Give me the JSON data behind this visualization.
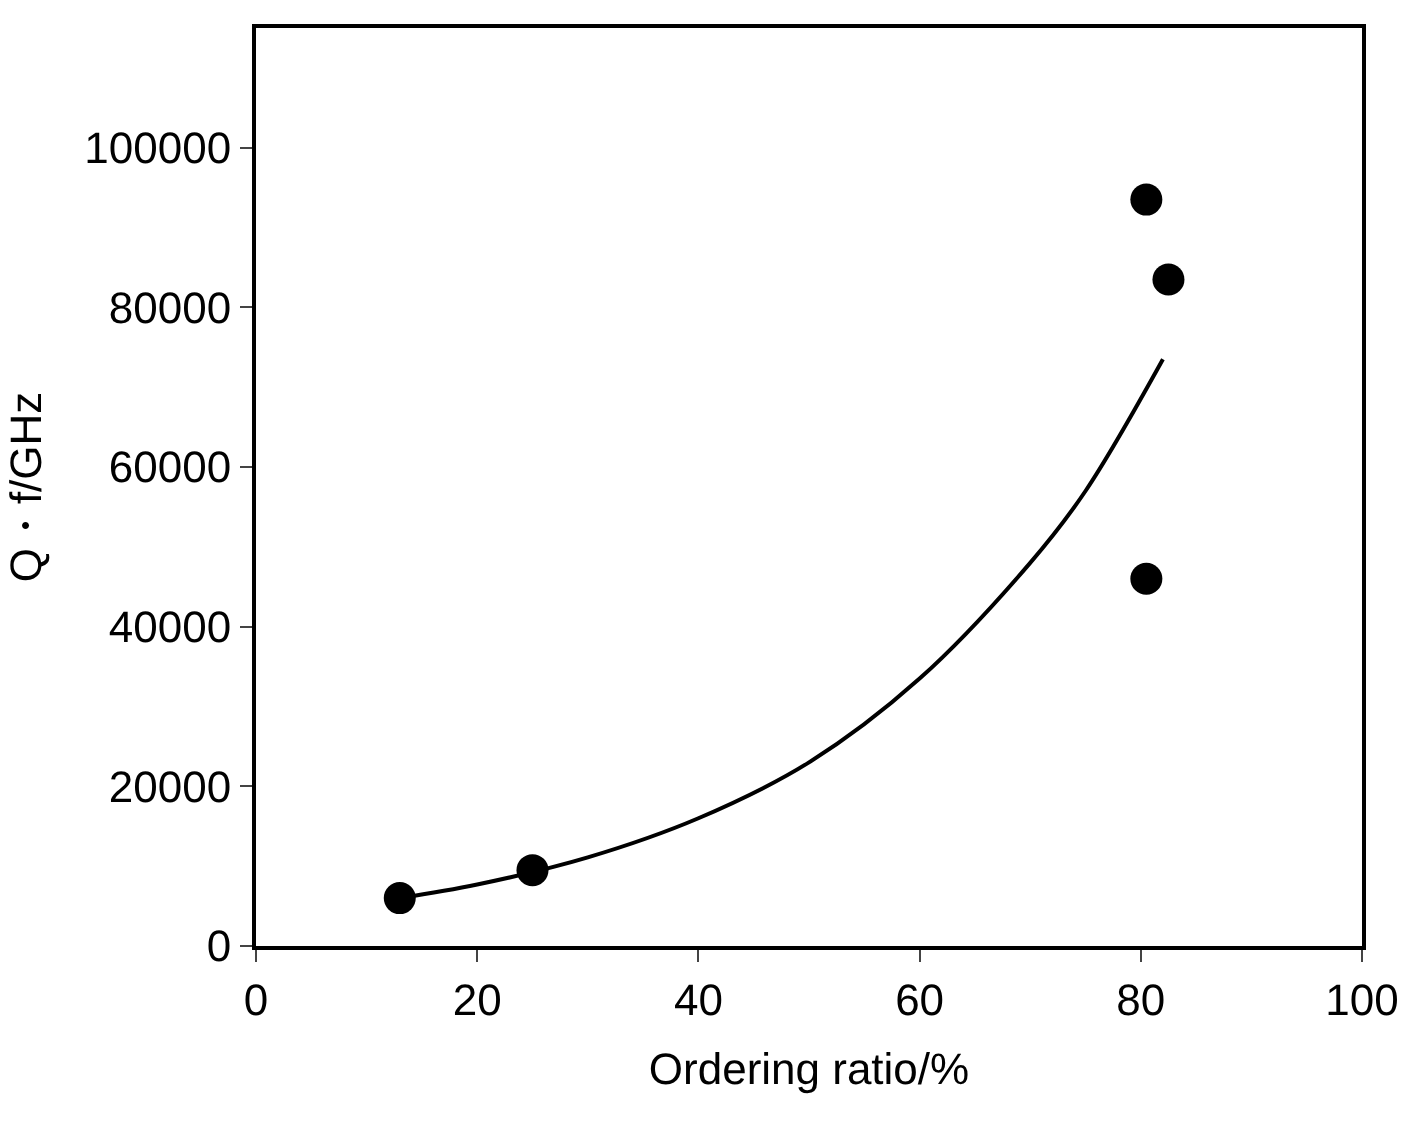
{
  "chart_data": {
    "type": "scatter",
    "xlabel": "Ordering ratio/%",
    "ylabel": "Q・f/GHz",
    "series": [
      {
        "color": "#000000",
        "marker": "circle",
        "x": [
          13,
          25,
          80.5,
          82.5,
          80.5
        ],
        "values": [
          6000,
          9500,
          93500,
          83500,
          46000
        ]
      },
      {
        "type": "line",
        "color": "#000000",
        "marker": "none",
        "line_style": "solid",
        "x": [
          13,
          20,
          30,
          40,
          50,
          60,
          70,
          75,
          82
        ],
        "values": [
          6000,
          7700,
          11100,
          16000,
          23000,
          33500,
          48000,
          57000,
          73500
        ]
      }
    ],
    "xlim": [
      0,
      100
    ],
    "xticks": [
      0,
      20,
      40,
      60,
      80,
      100
    ],
    "ylim": [
      0,
      115000
    ],
    "yticks": [
      0,
      20000,
      40000,
      60000,
      80000,
      100000
    ]
  }
}
